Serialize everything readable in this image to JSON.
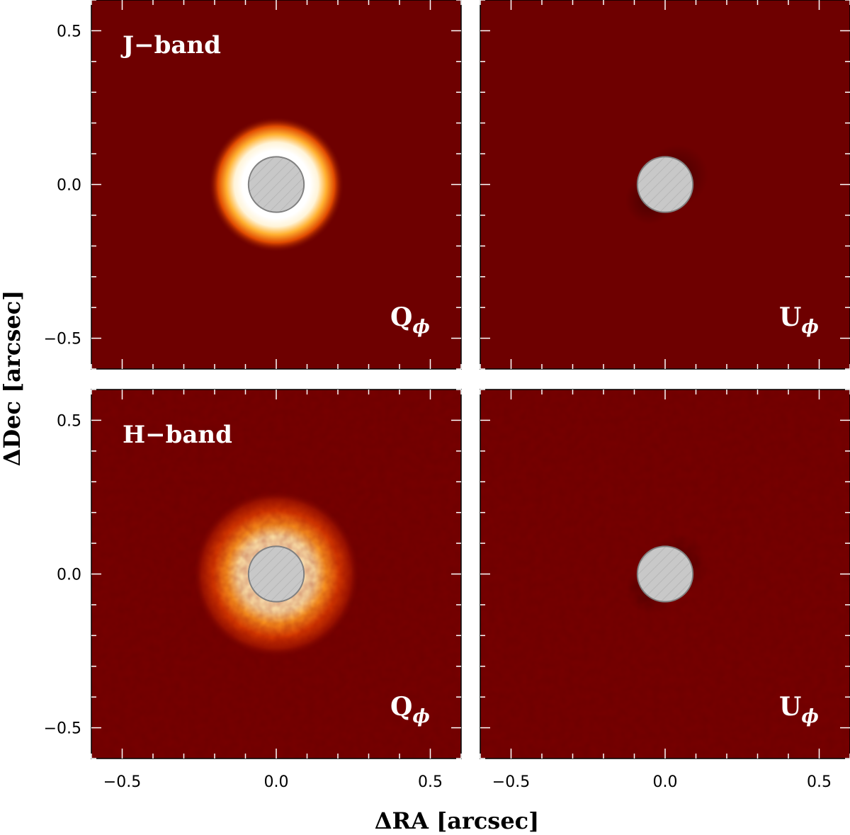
{
  "chart_data": {
    "type": "heatmap",
    "layout": "2x2 grid",
    "xlabel": "ΔRA [arcsec]",
    "ylabel": "ΔDec [arcsec]",
    "xlim": [
      -0.6,
      0.6
    ],
    "ylim": [
      -0.6,
      0.6
    ],
    "xticks": [
      -0.5,
      0.0,
      0.5
    ],
    "yticks": [
      -0.5,
      0.0,
      0.5
    ],
    "xtick_labels": [
      "−0.5",
      "0.0",
      "0.5"
    ],
    "ytick_labels": [
      "−0.5",
      "0.0",
      "0.5"
    ],
    "coronagraph_mask": {
      "center": [
        0.0,
        0.0
      ],
      "radius_arcsec": 0.09,
      "color": "#c8c8c8",
      "hatched": true
    },
    "colormap": {
      "name": "gist_heat",
      "low": "#6e0000",
      "high": "#ffffff"
    },
    "panels": [
      {
        "row": 0,
        "col": 0,
        "band": "J−band",
        "stokes": "Q",
        "stokes_sub": "ϕ",
        "features": {
          "ring_radius_arcsec": 0.14,
          "ring_width_arcsec": 0.08,
          "peak_level": 1.0,
          "background_level": 0.1
        }
      },
      {
        "row": 0,
        "col": 1,
        "band": "",
        "stokes": "U",
        "stokes_sub": "ϕ",
        "features": {
          "residual": "faint dark lobes near mask",
          "background_level": 0.1
        }
      },
      {
        "row": 1,
        "col": 0,
        "band": "H−band",
        "stokes": "Q",
        "stokes_sub": "ϕ",
        "features": {
          "ring_radius_arcsec": 0.15,
          "ring_width_arcsec": 0.12,
          "peak_level": 0.9,
          "background_level": 0.12,
          "noisy": true
        }
      },
      {
        "row": 1,
        "col": 1,
        "band": "",
        "stokes": "U",
        "stokes_sub": "ϕ",
        "features": {
          "residual": "noisy speckle pattern",
          "background_level": 0.12
        }
      }
    ]
  }
}
